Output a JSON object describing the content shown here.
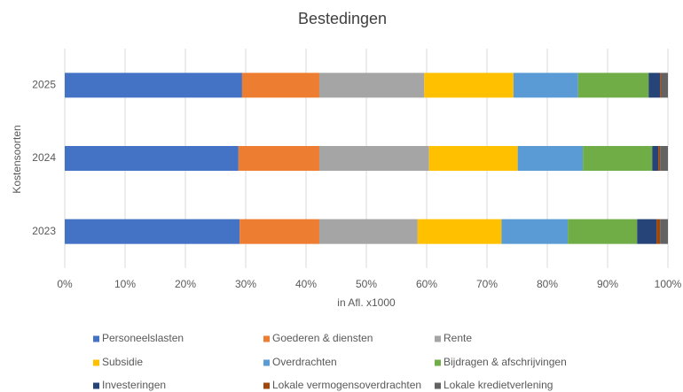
{
  "chart_data": {
    "type": "stacked-bar-horizontal",
    "title": "Bestedingen",
    "x_label": "in Afl. x1000",
    "y_label": "Kostensoorten",
    "categories": [
      "2023",
      "2024",
      "2025"
    ],
    "series": [
      {
        "name": "Personeelslasten",
        "color": "#4472c4",
        "values": [
          29.0,
          28.8,
          29.4
        ]
      },
      {
        "name": "Goederen & diensten",
        "color": "#ed7d31",
        "values": [
          13.2,
          13.4,
          12.8
        ]
      },
      {
        "name": "Rente",
        "color": "#a5a5a5",
        "values": [
          16.3,
          18.2,
          17.4
        ]
      },
      {
        "name": "Subsidie",
        "color": "#ffc000",
        "values": [
          13.9,
          14.7,
          14.8
        ]
      },
      {
        "name": "Overdrachten",
        "color": "#5b9bd5",
        "values": [
          11.0,
          10.8,
          10.7
        ]
      },
      {
        "name": "Bijdragen & afschrijvingen",
        "color": "#70ad47",
        "values": [
          11.5,
          11.5,
          11.7
        ]
      },
      {
        "name": "Investeringen",
        "color": "#264478",
        "values": [
          3.2,
          1.0,
          1.9
        ]
      },
      {
        "name": "Lokale vermogensoverdrachten",
        "color": "#9e480e",
        "values": [
          0.6,
          0.3,
          0.2
        ]
      },
      {
        "name": "Lokale kredietverlening",
        "color": "#636363",
        "values": [
          1.3,
          1.3,
          1.1
        ]
      }
    ],
    "xlim": [
      0,
      100
    ],
    "xticks": [
      {
        "value": 0,
        "label": "0%"
      },
      {
        "value": 10,
        "label": "10%"
      },
      {
        "value": 20,
        "label": "20%"
      },
      {
        "value": 30,
        "label": "30%"
      },
      {
        "value": 40,
        "label": "40%"
      },
      {
        "value": 50,
        "label": "50%"
      },
      {
        "value": 60,
        "label": "60%"
      },
      {
        "value": 70,
        "label": "70%"
      },
      {
        "value": 80,
        "label": "80%"
      },
      {
        "value": 90,
        "label": "90%"
      },
      {
        "value": 100,
        "label": "100%"
      }
    ],
    "grid": true,
    "legend": "bottom"
  }
}
